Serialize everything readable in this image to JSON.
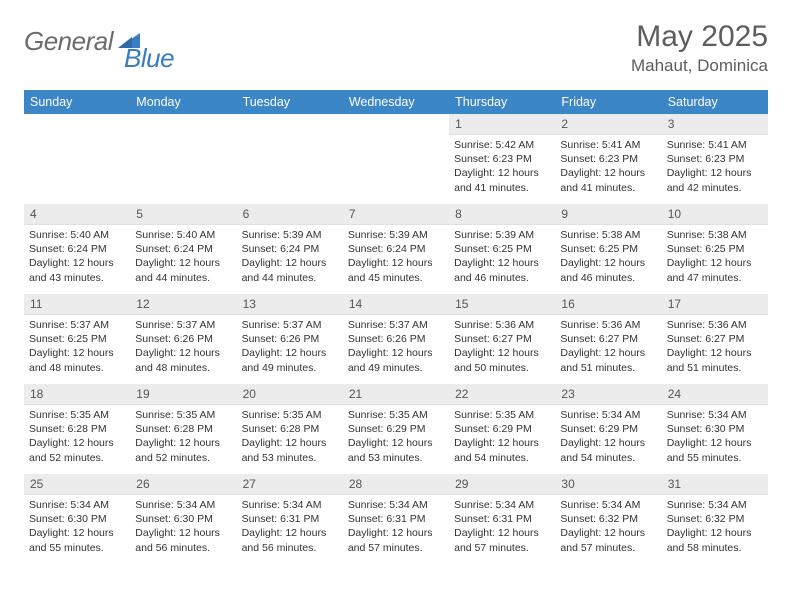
{
  "logo": {
    "text_a": "General",
    "text_b": "Blue"
  },
  "title": {
    "month": "May 2025",
    "location": "Mahaut, Dominica"
  },
  "colors": {
    "header_bg": "#3b86c6",
    "header_text": "#ffffff",
    "daynum_bg": "#ececec",
    "body_text": "#333333",
    "title_text": "#5d5d5d",
    "logo_gray": "#6b6b6b",
    "logo_blue": "#3b7bbf"
  },
  "weekdays": [
    "Sunday",
    "Monday",
    "Tuesday",
    "Wednesday",
    "Thursday",
    "Friday",
    "Saturday"
  ],
  "weeks": [
    [
      null,
      null,
      null,
      null,
      {
        "d": "1",
        "sr": "Sunrise: 5:42 AM",
        "ss": "Sunset: 6:23 PM",
        "dl1": "Daylight: 12 hours",
        "dl2": "and 41 minutes."
      },
      {
        "d": "2",
        "sr": "Sunrise: 5:41 AM",
        "ss": "Sunset: 6:23 PM",
        "dl1": "Daylight: 12 hours",
        "dl2": "and 41 minutes."
      },
      {
        "d": "3",
        "sr": "Sunrise: 5:41 AM",
        "ss": "Sunset: 6:23 PM",
        "dl1": "Daylight: 12 hours",
        "dl2": "and 42 minutes."
      }
    ],
    [
      {
        "d": "4",
        "sr": "Sunrise: 5:40 AM",
        "ss": "Sunset: 6:24 PM",
        "dl1": "Daylight: 12 hours",
        "dl2": "and 43 minutes."
      },
      {
        "d": "5",
        "sr": "Sunrise: 5:40 AM",
        "ss": "Sunset: 6:24 PM",
        "dl1": "Daylight: 12 hours",
        "dl2": "and 44 minutes."
      },
      {
        "d": "6",
        "sr": "Sunrise: 5:39 AM",
        "ss": "Sunset: 6:24 PM",
        "dl1": "Daylight: 12 hours",
        "dl2": "and 44 minutes."
      },
      {
        "d": "7",
        "sr": "Sunrise: 5:39 AM",
        "ss": "Sunset: 6:24 PM",
        "dl1": "Daylight: 12 hours",
        "dl2": "and 45 minutes."
      },
      {
        "d": "8",
        "sr": "Sunrise: 5:39 AM",
        "ss": "Sunset: 6:25 PM",
        "dl1": "Daylight: 12 hours",
        "dl2": "and 46 minutes."
      },
      {
        "d": "9",
        "sr": "Sunrise: 5:38 AM",
        "ss": "Sunset: 6:25 PM",
        "dl1": "Daylight: 12 hours",
        "dl2": "and 46 minutes."
      },
      {
        "d": "10",
        "sr": "Sunrise: 5:38 AM",
        "ss": "Sunset: 6:25 PM",
        "dl1": "Daylight: 12 hours",
        "dl2": "and 47 minutes."
      }
    ],
    [
      {
        "d": "11",
        "sr": "Sunrise: 5:37 AM",
        "ss": "Sunset: 6:25 PM",
        "dl1": "Daylight: 12 hours",
        "dl2": "and 48 minutes."
      },
      {
        "d": "12",
        "sr": "Sunrise: 5:37 AM",
        "ss": "Sunset: 6:26 PM",
        "dl1": "Daylight: 12 hours",
        "dl2": "and 48 minutes."
      },
      {
        "d": "13",
        "sr": "Sunrise: 5:37 AM",
        "ss": "Sunset: 6:26 PM",
        "dl1": "Daylight: 12 hours",
        "dl2": "and 49 minutes."
      },
      {
        "d": "14",
        "sr": "Sunrise: 5:37 AM",
        "ss": "Sunset: 6:26 PM",
        "dl1": "Daylight: 12 hours",
        "dl2": "and 49 minutes."
      },
      {
        "d": "15",
        "sr": "Sunrise: 5:36 AM",
        "ss": "Sunset: 6:27 PM",
        "dl1": "Daylight: 12 hours",
        "dl2": "and 50 minutes."
      },
      {
        "d": "16",
        "sr": "Sunrise: 5:36 AM",
        "ss": "Sunset: 6:27 PM",
        "dl1": "Daylight: 12 hours",
        "dl2": "and 51 minutes."
      },
      {
        "d": "17",
        "sr": "Sunrise: 5:36 AM",
        "ss": "Sunset: 6:27 PM",
        "dl1": "Daylight: 12 hours",
        "dl2": "and 51 minutes."
      }
    ],
    [
      {
        "d": "18",
        "sr": "Sunrise: 5:35 AM",
        "ss": "Sunset: 6:28 PM",
        "dl1": "Daylight: 12 hours",
        "dl2": "and 52 minutes."
      },
      {
        "d": "19",
        "sr": "Sunrise: 5:35 AM",
        "ss": "Sunset: 6:28 PM",
        "dl1": "Daylight: 12 hours",
        "dl2": "and 52 minutes."
      },
      {
        "d": "20",
        "sr": "Sunrise: 5:35 AM",
        "ss": "Sunset: 6:28 PM",
        "dl1": "Daylight: 12 hours",
        "dl2": "and 53 minutes."
      },
      {
        "d": "21",
        "sr": "Sunrise: 5:35 AM",
        "ss": "Sunset: 6:29 PM",
        "dl1": "Daylight: 12 hours",
        "dl2": "and 53 minutes."
      },
      {
        "d": "22",
        "sr": "Sunrise: 5:35 AM",
        "ss": "Sunset: 6:29 PM",
        "dl1": "Daylight: 12 hours",
        "dl2": "and 54 minutes."
      },
      {
        "d": "23",
        "sr": "Sunrise: 5:34 AM",
        "ss": "Sunset: 6:29 PM",
        "dl1": "Daylight: 12 hours",
        "dl2": "and 54 minutes."
      },
      {
        "d": "24",
        "sr": "Sunrise: 5:34 AM",
        "ss": "Sunset: 6:30 PM",
        "dl1": "Daylight: 12 hours",
        "dl2": "and 55 minutes."
      }
    ],
    [
      {
        "d": "25",
        "sr": "Sunrise: 5:34 AM",
        "ss": "Sunset: 6:30 PM",
        "dl1": "Daylight: 12 hours",
        "dl2": "and 55 minutes."
      },
      {
        "d": "26",
        "sr": "Sunrise: 5:34 AM",
        "ss": "Sunset: 6:30 PM",
        "dl1": "Daylight: 12 hours",
        "dl2": "and 56 minutes."
      },
      {
        "d": "27",
        "sr": "Sunrise: 5:34 AM",
        "ss": "Sunset: 6:31 PM",
        "dl1": "Daylight: 12 hours",
        "dl2": "and 56 minutes."
      },
      {
        "d": "28",
        "sr": "Sunrise: 5:34 AM",
        "ss": "Sunset: 6:31 PM",
        "dl1": "Daylight: 12 hours",
        "dl2": "and 57 minutes."
      },
      {
        "d": "29",
        "sr": "Sunrise: 5:34 AM",
        "ss": "Sunset: 6:31 PM",
        "dl1": "Daylight: 12 hours",
        "dl2": "and 57 minutes."
      },
      {
        "d": "30",
        "sr": "Sunrise: 5:34 AM",
        "ss": "Sunset: 6:32 PM",
        "dl1": "Daylight: 12 hours",
        "dl2": "and 57 minutes."
      },
      {
        "d": "31",
        "sr": "Sunrise: 5:34 AM",
        "ss": "Sunset: 6:32 PM",
        "dl1": "Daylight: 12 hours",
        "dl2": "and 58 minutes."
      }
    ]
  ]
}
